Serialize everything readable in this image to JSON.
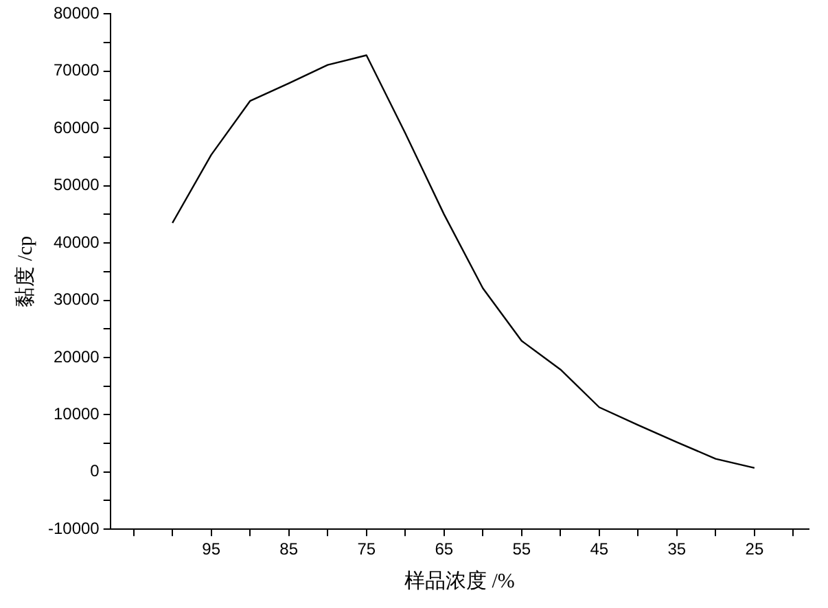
{
  "chart_data": {
    "type": "line",
    "xlabel": "样品浓度 /%",
    "ylabel": "黏度 /cp",
    "x": [
      100,
      95,
      90,
      85,
      80,
      75,
      70,
      65,
      60,
      55,
      50,
      45,
      40,
      35,
      30,
      25
    ],
    "series": [
      {
        "color": "#000000",
        "values": [
          43500,
          55400,
          64800,
          67900,
          71100,
          72800,
          59200,
          45000,
          32100,
          22900,
          17900,
          11300,
          8200,
          5200,
          2300,
          700
        ]
      }
    ],
    "xlim": [
      108,
      18
    ],
    "xticks": [
      {
        "value": 105,
        "label": null
      },
      {
        "value": 100,
        "label": null
      },
      95,
      {
        "value": 90,
        "label": null
      },
      85,
      {
        "value": 80,
        "label": null
      },
      75,
      {
        "value": 70,
        "label": null
      },
      65,
      {
        "value": 60,
        "label": null
      },
      55,
      {
        "value": 50,
        "label": null
      },
      45,
      {
        "value": 40,
        "label": null
      },
      35,
      {
        "value": 30,
        "label": null
      },
      25,
      {
        "value": 20,
        "label": null
      }
    ],
    "ylim": [
      -10000,
      80000
    ],
    "yticks": [
      -10000,
      {
        "value": -5000,
        "label": null
      },
      0,
      {
        "value": 5000,
        "label": null
      },
      10000,
      {
        "value": 15000,
        "label": null
      },
      20000,
      {
        "value": 25000,
        "label": null
      },
      30000,
      {
        "value": 35000,
        "label": null
      },
      40000,
      {
        "value": 45000,
        "label": null
      },
      50000,
      {
        "value": 55000,
        "label": null
      },
      60000,
      {
        "value": 65000,
        "label": null
      },
      70000,
      {
        "value": 75000,
        "label": null
      },
      80000
    ],
    "grid": false,
    "legend": false,
    "marker": "none",
    "line_style": "solid"
  }
}
